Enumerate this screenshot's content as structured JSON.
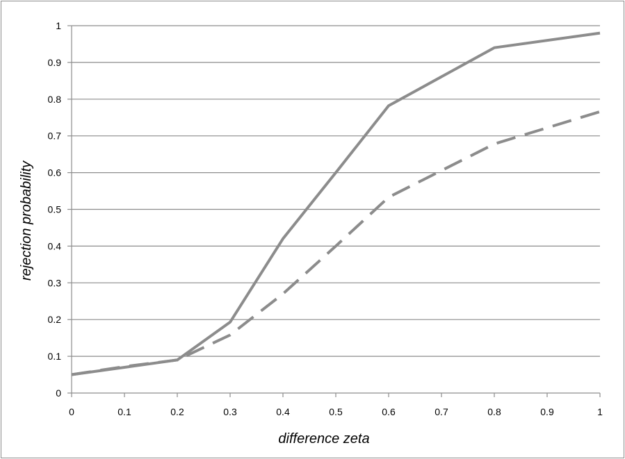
{
  "chart_data": {
    "type": "line",
    "title": "",
    "xlabel": "difference zeta",
    "ylabel": "rejection probability",
    "xlim": [
      0,
      1
    ],
    "ylim": [
      0,
      1
    ],
    "x_ticks": [
      "0",
      "0.1",
      "0.2",
      "0.3",
      "0.4",
      "0.5",
      "0.6",
      "0.7",
      "0.8",
      "0.9",
      "1"
    ],
    "y_ticks": [
      "0",
      "0.1",
      "0.2",
      "0.3",
      "0.4",
      "0.5",
      "0.6",
      "0.7",
      "0.8",
      "0.9",
      "1"
    ],
    "grid": "horizontal",
    "legend": "none",
    "series": [
      {
        "style": "solid",
        "color": "#8c8c8c",
        "x": [
          0,
          0.1,
          0.2,
          0.3,
          0.4,
          0.5,
          0.6,
          0.8,
          1
        ],
        "y": [
          0.05,
          0.07,
          0.09,
          0.193,
          0.42,
          0.6,
          0.782,
          0.94,
          0.98
        ]
      },
      {
        "style": "dashed",
        "color": "#8c8c8c",
        "x": [
          0,
          0.1,
          0.2,
          0.3,
          0.4,
          0.5,
          0.6,
          0.8,
          1
        ],
        "y": [
          0.05,
          0.072,
          0.09,
          0.158,
          0.27,
          0.4,
          0.533,
          0.678,
          0.766
        ]
      }
    ]
  }
}
